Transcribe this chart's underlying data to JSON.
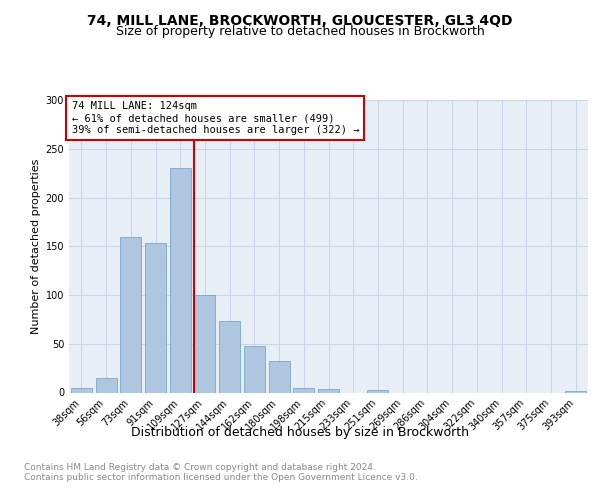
{
  "title1": "74, MILL LANE, BROCKWORTH, GLOUCESTER, GL3 4QD",
  "title2": "Size of property relative to detached houses in Brockworth",
  "xlabel": "Distribution of detached houses by size in Brockworth",
  "ylabel": "Number of detached properties",
  "categories": [
    "38sqm",
    "56sqm",
    "73sqm",
    "91sqm",
    "109sqm",
    "127sqm",
    "144sqm",
    "162sqm",
    "180sqm",
    "198sqm",
    "215sqm",
    "233sqm",
    "251sqm",
    "269sqm",
    "286sqm",
    "304sqm",
    "322sqm",
    "340sqm",
    "357sqm",
    "375sqm",
    "393sqm"
  ],
  "values": [
    5,
    15,
    160,
    153,
    230,
    100,
    73,
    48,
    32,
    5,
    4,
    0,
    3,
    0,
    0,
    0,
    0,
    0,
    0,
    0,
    2
  ],
  "bar_color": "#aec6df",
  "bar_edge_color": "#6b9ec8",
  "redline_x": 4.55,
  "redline_label": "74 MILL LANE: 124sqm",
  "annotation_line1": "← 61% of detached houses are smaller (499)",
  "annotation_line2": "39% of semi-detached houses are larger (322) →",
  "annotation_box_color": "#ffffff",
  "annotation_box_edge": "#cc0000",
  "ylim": [
    0,
    300
  ],
  "yticks": [
    0,
    50,
    100,
    150,
    200,
    250,
    300
  ],
  "grid_color": "#c8d4e8",
  "background_color": "#e8eef6",
  "footer_text": "Contains HM Land Registry data © Crown copyright and database right 2024.\nContains public sector information licensed under the Open Government Licence v3.0.",
  "title1_fontsize": 10,
  "title2_fontsize": 9,
  "xlabel_fontsize": 9,
  "ylabel_fontsize": 8,
  "tick_fontsize": 7,
  "annotation_fontsize": 7.5,
  "footer_fontsize": 6.5
}
